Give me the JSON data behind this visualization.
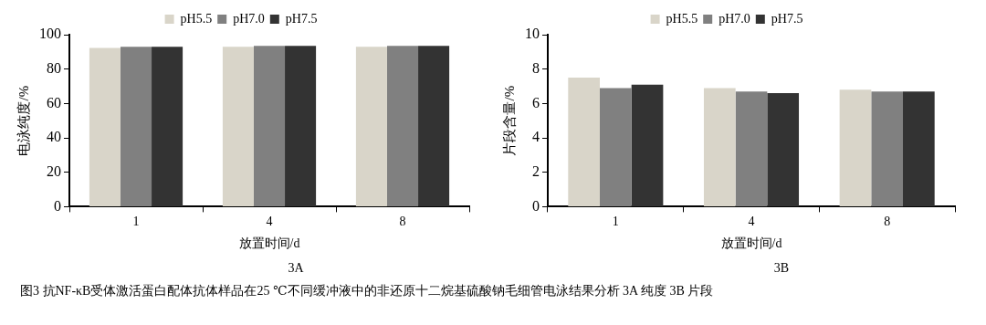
{
  "chart_data": [
    {
      "type": "bar",
      "xlabel": "放置时间/d",
      "ylabel": "电泳纯度/%",
      "categories": [
        "1",
        "4",
        "8"
      ],
      "series": [
        {
          "name": "pH5.5",
          "color": "#d9d5c9",
          "values": [
            92.3,
            93,
            93
          ]
        },
        {
          "name": "pH7.0",
          "color": "#808080",
          "values": [
            93,
            93.5,
            93.5
          ]
        },
        {
          "name": "pH7.5",
          "color": "#333333",
          "values": [
            93,
            93.5,
            93.5
          ]
        }
      ],
      "ylim": [
        0,
        100
      ],
      "yticks": [
        0,
        20,
        40,
        60,
        80,
        100
      ],
      "grid": false,
      "legend": "top",
      "annotations": [
        "3A"
      ]
    },
    {
      "type": "bar",
      "xlabel": "放置时间/d",
      "ylabel": "片段含量/%",
      "categories": [
        "1",
        "4",
        "8"
      ],
      "series": [
        {
          "name": "pH5.5",
          "color": "#d9d5c9",
          "values": [
            7.5,
            6.9,
            6.8
          ]
        },
        {
          "name": "pH7.0",
          "color": "#808080",
          "values": [
            6.9,
            6.7,
            6.7
          ]
        },
        {
          "name": "pH7.5",
          "color": "#333333",
          "values": [
            7.1,
            6.6,
            6.7
          ]
        }
      ],
      "ylim": [
        0,
        10
      ],
      "yticks": [
        0,
        2,
        4,
        6,
        8,
        10
      ],
      "grid": false,
      "legend": "top",
      "annotations": [
        "3B",
        "图3 抗NF-κB受体激活蛋白配体抗体样品在25 ℃不同缓冲液中的非还原十二烷基硫酸钠毛细管电泳结果分析 3A 纯度 3B 片段"
      ]
    }
  ]
}
